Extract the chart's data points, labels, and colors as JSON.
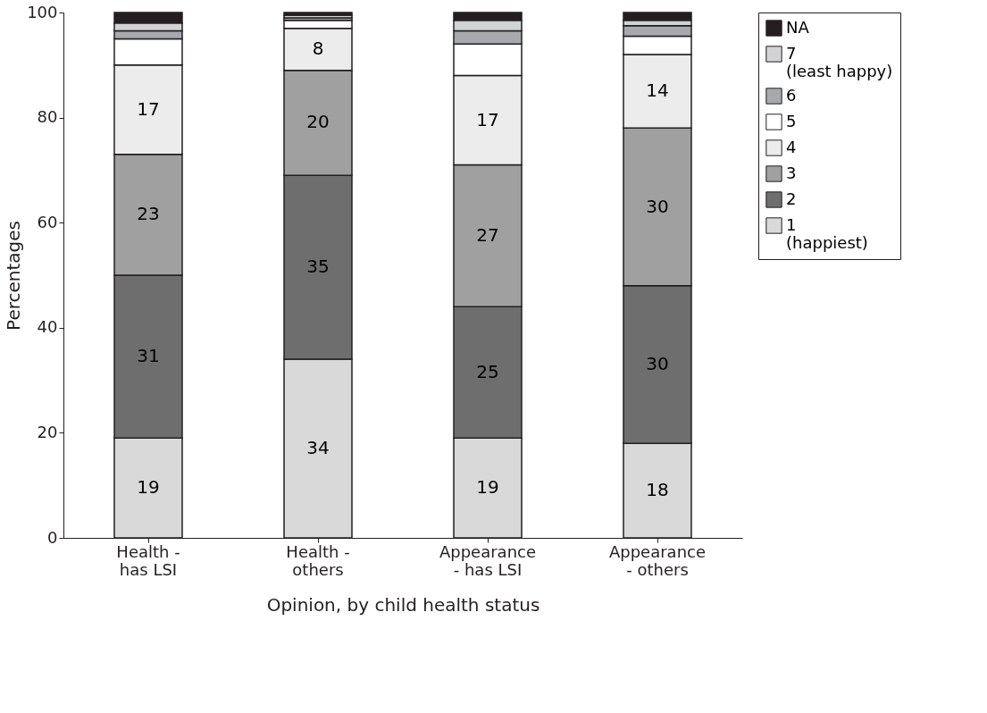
{
  "chart_data": {
    "type": "bar",
    "stacked": true,
    "xlabel": "Opinion, by child health status",
    "ylabel": "Percentages",
    "categories": [
      "Health -\nhas LSI",
      "Health -\nothers",
      "Appearance\n- has LSI",
      "Appearance\n- others"
    ],
    "series": [
      {
        "name": "1 (happiest)",
        "color": "#d9d9d9",
        "values": [
          19,
          34,
          19,
          18
        ],
        "value_labels": [
          "19",
          "34",
          "19",
          "18"
        ]
      },
      {
        "name": "2",
        "color": "#6e6e6e",
        "values": [
          31,
          35,
          25,
          30
        ],
        "value_labels": [
          "31",
          "35",
          "25",
          "30"
        ]
      },
      {
        "name": "3",
        "color": "#a0a0a0",
        "values": [
          23,
          20,
          27,
          30
        ],
        "value_labels": [
          "23",
          "20",
          "27",
          "30"
        ]
      },
      {
        "name": "4",
        "color": "#ececec",
        "values": [
          17,
          8,
          17,
          14
        ],
        "value_labels": [
          "17",
          "8",
          "17",
          "14"
        ]
      },
      {
        "name": "5",
        "color": "#ffffff",
        "values": [
          5,
          1.5,
          6,
          3.5
        ]
      },
      {
        "name": "6",
        "color": "#a7a9ac",
        "values": [
          1.5,
          0.5,
          2.5,
          2
        ]
      },
      {
        "name": "7 (least happy)",
        "color": "#d1d3d4",
        "values": [
          1.5,
          0.5,
          2,
          1
        ]
      },
      {
        "name": "NA",
        "color": "#231f20",
        "values": [
          2,
          0.5,
          1.5,
          1.5
        ]
      }
    ],
    "ylim": [
      0,
      100
    ],
    "yticks": [
      0,
      20,
      40,
      60,
      80,
      100
    ],
    "grid": false,
    "legend": "right"
  }
}
